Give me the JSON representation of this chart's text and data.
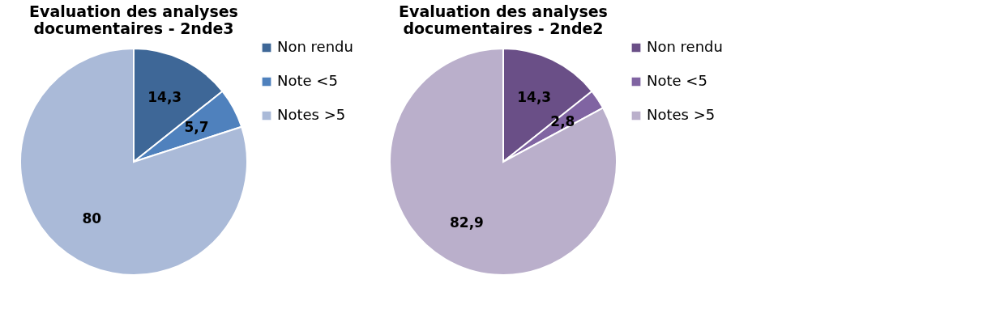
{
  "chart_data": [
    {
      "type": "pie",
      "title": "Evaluation des analyses documentaires - 2nde3",
      "categories": [
        "Non rendu",
        "Note <5",
        "Notes >5"
      ],
      "values": [
        14.3,
        5.7,
        80
      ],
      "value_labels": [
        "14,3",
        "5,7",
        "80"
      ],
      "colors": [
        "#3e6797",
        "#4f81bd",
        "#aabad8"
      ],
      "legend": "right"
    },
    {
      "type": "pie",
      "title": "Evaluation des analyses documentaires - 2nde2",
      "categories": [
        "Non rendu",
        "Note <5",
        "Notes >5"
      ],
      "values": [
        14.3,
        2.8,
        82.9
      ],
      "value_labels": [
        "14,3",
        "2,8",
        "82,9"
      ],
      "colors": [
        "#6a4f87",
        "#8064a2",
        "#baafcb"
      ],
      "legend": "right"
    }
  ]
}
